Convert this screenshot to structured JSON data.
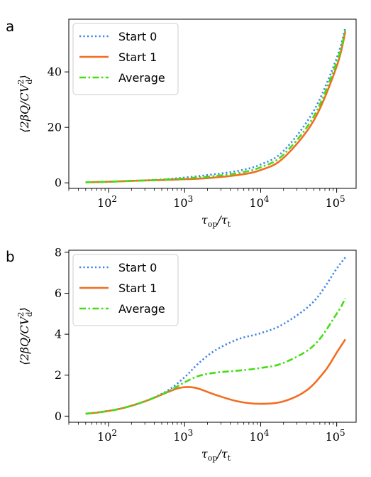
{
  "chart_data": [
    {
      "type": "line",
      "panel": "a",
      "xscale": "log",
      "xlim": [
        30,
        180000
      ],
      "ylim": [
        -2,
        59
      ],
      "xlabel": {
        "main": "τ",
        "sub1": "op",
        "mid": "/τ",
        "sub2": "t"
      },
      "ylabel": {
        "pre": "⟨2βQ/CV",
        "sup": "2",
        "sub": "d",
        "post": "⟩"
      },
      "xticks": [
        {
          "value": 100,
          "base": "10",
          "exp": "2"
        },
        {
          "value": 1000,
          "base": "10",
          "exp": "3"
        },
        {
          "value": 10000,
          "base": "10",
          "exp": "4"
        },
        {
          "value": 100000,
          "base": "10",
          "exp": "5"
        }
      ],
      "yticks": [
        0,
        20,
        40
      ],
      "legend": {
        "position": "upper-left"
      },
      "series": [
        {
          "name": "Start 0",
          "color": "#3d85e6",
          "style": "dotted",
          "x": [
            50,
            100,
            200,
            500,
            1000,
            2000,
            5000,
            10000,
            20000,
            50000,
            100000,
            130000
          ],
          "y": [
            0.2,
            0.4,
            0.7,
            1.2,
            1.9,
            2.8,
            4.3,
            6.6,
            11.5,
            26,
            45,
            56
          ]
        },
        {
          "name": "Start 1",
          "color": "#f26d21",
          "style": "solid",
          "x": [
            50,
            100,
            200,
            500,
            1000,
            2000,
            5000,
            10000,
            20000,
            50000,
            100000,
            130000
          ],
          "y": [
            0.2,
            0.4,
            0.7,
            1.0,
            1.3,
            1.7,
            2.8,
            4.6,
            9.0,
            22.5,
            42,
            54.5
          ]
        },
        {
          "name": "Average",
          "color": "#44dd11",
          "style": "dashdot",
          "x": [
            50,
            100,
            200,
            500,
            1000,
            2000,
            5000,
            10000,
            20000,
            50000,
            100000,
            130000
          ],
          "y": [
            0.2,
            0.4,
            0.7,
            1.1,
            1.6,
            2.2,
            3.5,
            5.6,
            10.2,
            24,
            43.5,
            55
          ]
        }
      ]
    },
    {
      "type": "line",
      "panel": "b",
      "xscale": "log",
      "xlim": [
        30,
        180000
      ],
      "ylim": [
        -0.3,
        8.1
      ],
      "xlabel": {
        "main": "τ",
        "sub1": "op",
        "mid": "/τ",
        "sub2": "t"
      },
      "ylabel": {
        "pre": "⟨2βQ/CV",
        "sup": "2",
        "sub": "d",
        "post": "⟩"
      },
      "xticks": [
        {
          "value": 100,
          "base": "10",
          "exp": "2"
        },
        {
          "value": 1000,
          "base": "10",
          "exp": "3"
        },
        {
          "value": 10000,
          "base": "10",
          "exp": "4"
        },
        {
          "value": 100000,
          "base": "10",
          "exp": "5"
        }
      ],
      "yticks": [
        0,
        2,
        4,
        6,
        8
      ],
      "legend": {
        "position": "upper-left"
      },
      "series": [
        {
          "name": "Start 0",
          "color": "#3d85e6",
          "style": "dotted",
          "x": [
            50,
            80,
            150,
            300,
            600,
            1000,
            1500,
            2500,
            5000,
            10000,
            20000,
            50000,
            100000,
            130000
          ],
          "y": [
            0.12,
            0.2,
            0.38,
            0.72,
            1.25,
            1.9,
            2.55,
            3.2,
            3.75,
            4.05,
            4.5,
            5.6,
            7.2,
            7.75
          ]
        },
        {
          "name": "Start 1",
          "color": "#f26d21",
          "style": "solid",
          "x": [
            50,
            80,
            150,
            300,
            500,
            800,
            1100,
            1500,
            2500,
            5000,
            10000,
            20000,
            40000,
            70000,
            100000,
            130000
          ],
          "y": [
            0.12,
            0.2,
            0.38,
            0.72,
            1.05,
            1.35,
            1.42,
            1.35,
            1.05,
            0.72,
            0.6,
            0.72,
            1.25,
            2.2,
            3.1,
            3.75
          ]
        },
        {
          "name": "Average",
          "color": "#44dd11",
          "style": "dashdot",
          "x": [
            50,
            80,
            150,
            300,
            600,
            1000,
            1500,
            2500,
            5000,
            10000,
            20000,
            50000,
            100000,
            130000
          ],
          "y": [
            0.12,
            0.2,
            0.38,
            0.72,
            1.2,
            1.65,
            1.95,
            2.12,
            2.22,
            2.35,
            2.6,
            3.45,
            5.0,
            5.75
          ]
        }
      ]
    }
  ],
  "panels": {
    "a": {
      "letter": "a"
    },
    "b": {
      "letter": "b"
    }
  }
}
